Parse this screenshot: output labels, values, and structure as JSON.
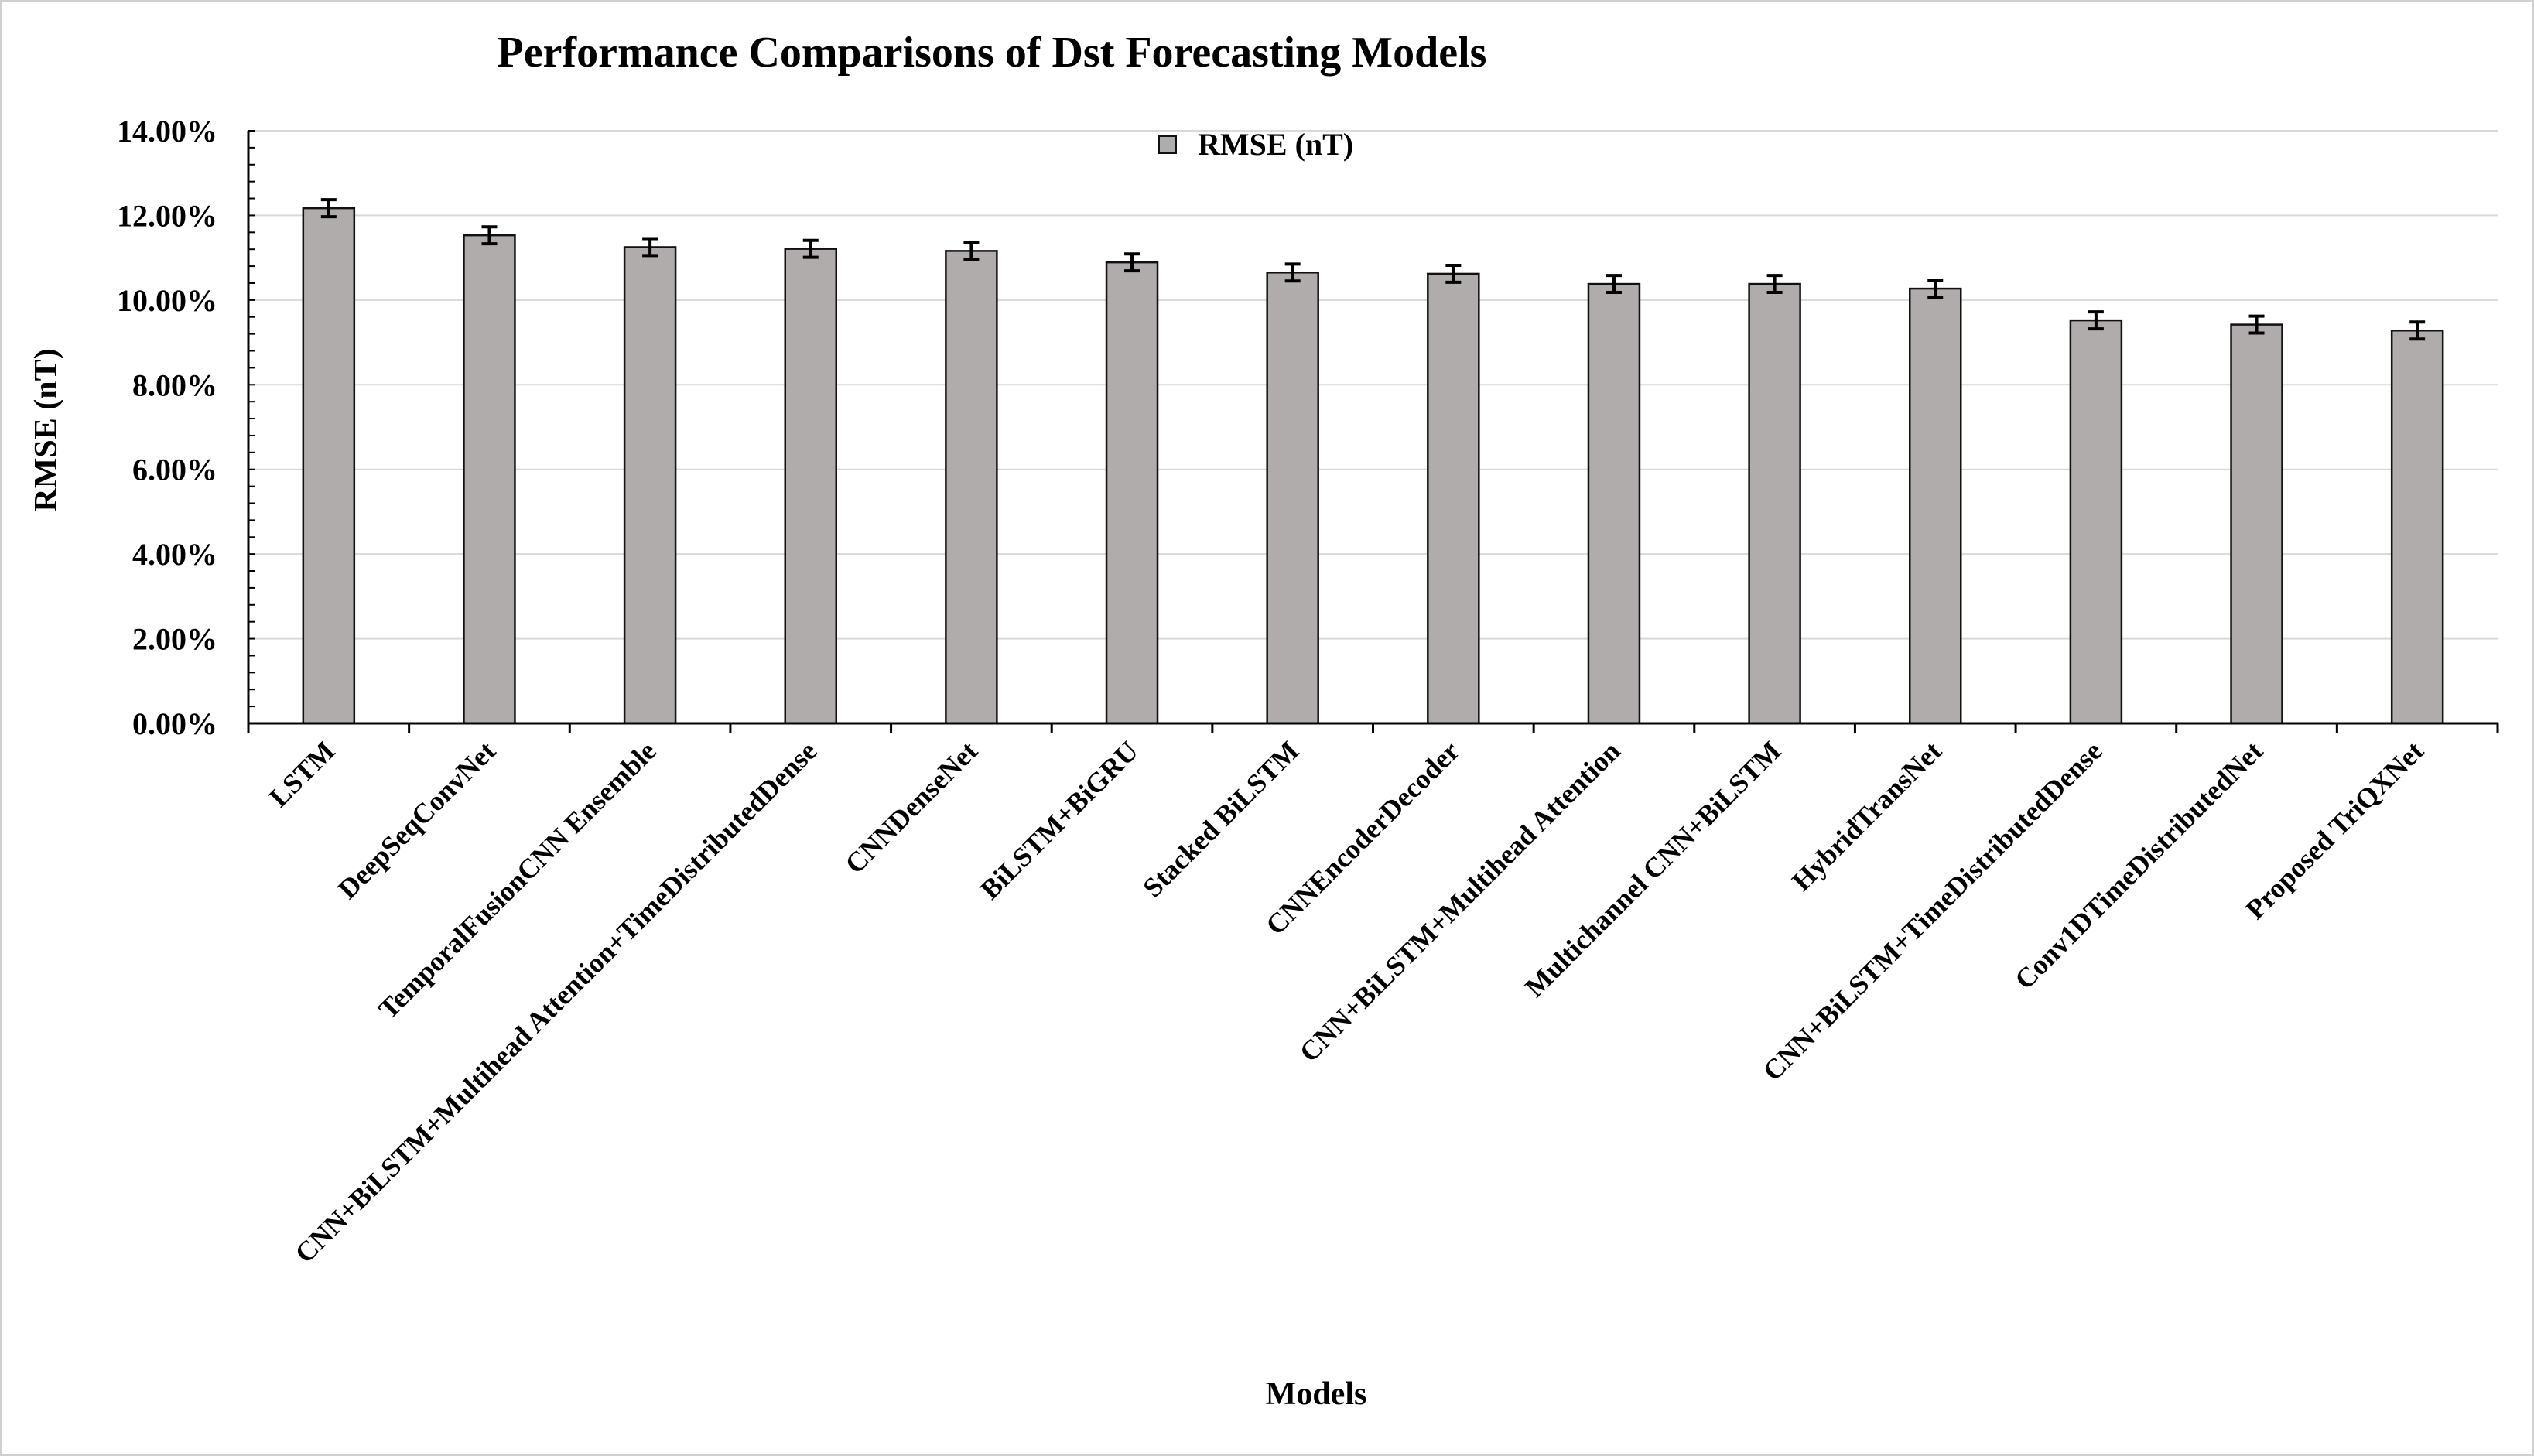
{
  "chart_data": {
    "type": "bar",
    "title": "Performance Comparisons of Dst Forecasting Models",
    "xlabel": "Models",
    "ylabel": "RMSE (nT)",
    "ylim": [
      0,
      14
    ],
    "y_tick_labels": [
      "0.00%",
      "2.00%",
      "4.00%",
      "6.00%",
      "8.00%",
      "10.00%",
      "12.00%",
      "14.00%"
    ],
    "y_ticks": [
      0,
      2,
      4,
      6,
      8,
      10,
      12,
      14
    ],
    "grid": true,
    "legend_position": "top-center",
    "colors": {
      "bar": "#b0acac",
      "bar_stroke": "#111111",
      "grid": "#d9d9d9",
      "axis": "#000000"
    },
    "categories": [
      "LSTM",
      "DeepSeqConvNet",
      "TemporalFusionCNN Ensemble",
      "CNN+BiLSTM+Multihead Attention+TimeDistributedDense",
      "CNNDenseNet",
      "BiLSTM+BiGRU",
      "Stacked BiLSTM",
      "CNNEncoderDecoder",
      "CNN+BiLSTM+Multihead Attention",
      "Multichannel CNN+BiLSTM",
      "HybridTransNet",
      "CNN+BiLSTM+TimeDistributedDense",
      "Conv1DTimeDistributedNet",
      "Proposed TriQXNet"
    ],
    "series": [
      {
        "name": "RMSE (nT)",
        "values": [
          12.17,
          11.53,
          11.25,
          11.21,
          11.16,
          10.89,
          10.65,
          10.62,
          10.38,
          10.38,
          10.27,
          9.52,
          9.42,
          9.28
        ],
        "error": [
          0.2,
          0.2,
          0.2,
          0.2,
          0.2,
          0.2,
          0.2,
          0.2,
          0.2,
          0.2,
          0.2,
          0.2,
          0.2,
          0.2
        ]
      }
    ]
  }
}
